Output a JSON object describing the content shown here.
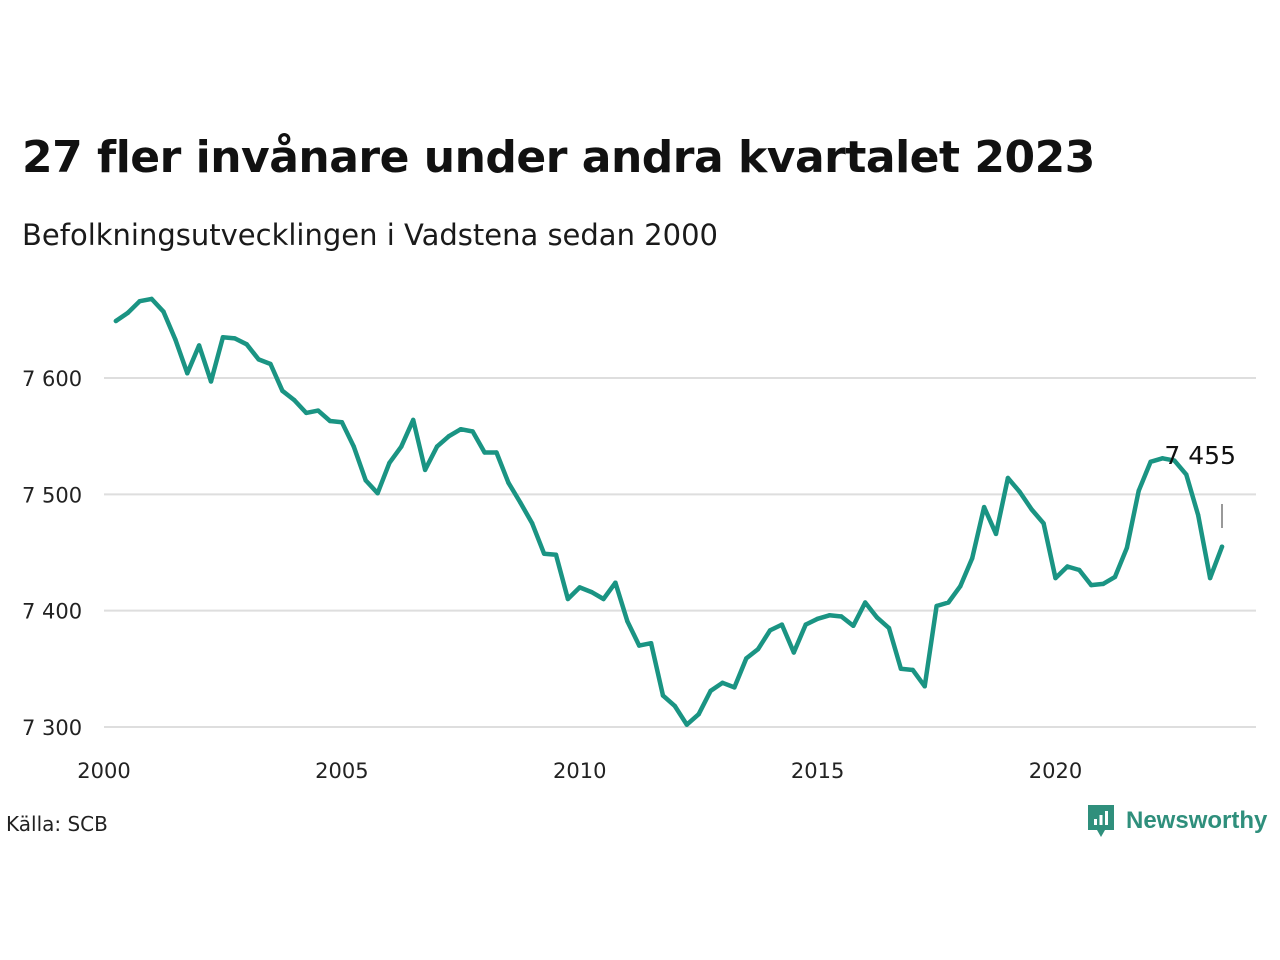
{
  "header": {
    "title": "27 fler invånare under andra kvartalet 2023",
    "subtitle": "Befolkningsutvecklingen i Vadstena sedan 2000"
  },
  "footer": {
    "source": "Källa: SCB",
    "brand": "Newsworthy"
  },
  "colors": {
    "line": "#1a9483",
    "grid": "#dedede",
    "brand": "#2f8f7c"
  },
  "chart_data": {
    "type": "line",
    "title": "27 fler invånare under andra kvartalet 2023",
    "subtitle": "Befolkningsutvecklingen i Vadstena sedan 2000",
    "xlim": [
      2000,
      2024.5
    ],
    "ylim": [
      7290,
      7690
    ],
    "x_ticks": [
      2000,
      2005,
      2010,
      2015,
      2020
    ],
    "x_tick_labels": [
      "2000",
      "2005",
      "2010",
      "2015",
      "2020"
    ],
    "y_ticks": [
      7300,
      7400,
      7500,
      7600
    ],
    "y_tick_labels": [
      "7 300",
      "7 400",
      "7 500",
      "7 600"
    ],
    "grid": "horizontal",
    "last_value_label": "7 455",
    "series": [
      {
        "values": [
          {
            "x": 2000.25,
            "y": 7649
          },
          {
            "x": 2000.5,
            "y": 7656
          },
          {
            "x": 2000.75,
            "y": 7666
          },
          {
            "x": 2001.0,
            "y": 7668
          },
          {
            "x": 2001.25,
            "y": 7657
          },
          {
            "x": 2001.5,
            "y": 7633
          },
          {
            "x": 2001.75,
            "y": 7604
          },
          {
            "x": 2002.0,
            "y": 7628
          },
          {
            "x": 2002.25,
            "y": 7597
          },
          {
            "x": 2002.5,
            "y": 7635
          },
          {
            "x": 2002.75,
            "y": 7634
          },
          {
            "x": 2003.0,
            "y": 7629
          },
          {
            "x": 2003.25,
            "y": 7616
          },
          {
            "x": 2003.5,
            "y": 7612
          },
          {
            "x": 2003.75,
            "y": 7589
          },
          {
            "x": 2004.0,
            "y": 7581
          },
          {
            "x": 2004.25,
            "y": 7570
          },
          {
            "x": 2004.5,
            "y": 7572
          },
          {
            "x": 2004.75,
            "y": 7563
          },
          {
            "x": 2005.0,
            "y": 7562
          },
          {
            "x": 2005.25,
            "y": 7541
          },
          {
            "x": 2005.5,
            "y": 7512
          },
          {
            "x": 2005.75,
            "y": 7501
          },
          {
            "x": 2006.0,
            "y": 7527
          },
          {
            "x": 2006.25,
            "y": 7541
          },
          {
            "x": 2006.5,
            "y": 7564
          },
          {
            "x": 2006.75,
            "y": 7521
          },
          {
            "x": 2007.0,
            "y": 7541
          },
          {
            "x": 2007.25,
            "y": 7550
          },
          {
            "x": 2007.5,
            "y": 7556
          },
          {
            "x": 2007.75,
            "y": 7554
          },
          {
            "x": 2008.0,
            "y": 7536
          },
          {
            "x": 2008.25,
            "y": 7536
          },
          {
            "x": 2008.5,
            "y": 7510
          },
          {
            "x": 2008.75,
            "y": 7493
          },
          {
            "x": 2009.0,
            "y": 7475
          },
          {
            "x": 2009.25,
            "y": 7449
          },
          {
            "x": 2009.5,
            "y": 7448
          },
          {
            "x": 2009.75,
            "y": 7410
          },
          {
            "x": 2010.0,
            "y": 7420
          },
          {
            "x": 2010.25,
            "y": 7416
          },
          {
            "x": 2010.5,
            "y": 7410
          },
          {
            "x": 2010.75,
            "y": 7424
          },
          {
            "x": 2011.0,
            "y": 7391
          },
          {
            "x": 2011.25,
            "y": 7370
          },
          {
            "x": 2011.5,
            "y": 7372
          },
          {
            "x": 2011.75,
            "y": 7327
          },
          {
            "x": 2012.0,
            "y": 7318
          },
          {
            "x": 2012.25,
            "y": 7302
          },
          {
            "x": 2012.5,
            "y": 7311
          },
          {
            "x": 2012.75,
            "y": 7331
          },
          {
            "x": 2013.0,
            "y": 7338
          },
          {
            "x": 2013.25,
            "y": 7334
          },
          {
            "x": 2013.5,
            "y": 7359
          },
          {
            "x": 2013.75,
            "y": 7367
          },
          {
            "x": 2014.0,
            "y": 7383
          },
          {
            "x": 2014.25,
            "y": 7388
          },
          {
            "x": 2014.5,
            "y": 7364
          },
          {
            "x": 2014.75,
            "y": 7388
          },
          {
            "x": 2015.0,
            "y": 7393
          },
          {
            "x": 2015.25,
            "y": 7396
          },
          {
            "x": 2015.5,
            "y": 7395
          },
          {
            "x": 2015.75,
            "y": 7387
          },
          {
            "x": 2016.0,
            "y": 7407
          },
          {
            "x": 2016.25,
            "y": 7394
          },
          {
            "x": 2016.5,
            "y": 7385
          },
          {
            "x": 2016.75,
            "y": 7350
          },
          {
            "x": 2017.0,
            "y": 7349
          },
          {
            "x": 2017.25,
            "y": 7335
          },
          {
            "x": 2017.5,
            "y": 7404
          },
          {
            "x": 2017.75,
            "y": 7407
          },
          {
            "x": 2018.0,
            "y": 7421
          },
          {
            "x": 2018.25,
            "y": 7445
          },
          {
            "x": 2018.5,
            "y": 7489
          },
          {
            "x": 2018.75,
            "y": 7466
          },
          {
            "x": 2019.0,
            "y": 7514
          },
          {
            "x": 2019.25,
            "y": 7502
          },
          {
            "x": 2019.5,
            "y": 7487
          },
          {
            "x": 2019.75,
            "y": 7475
          },
          {
            "x": 2020.0,
            "y": 7428
          },
          {
            "x": 2020.25,
            "y": 7438
          },
          {
            "x": 2020.5,
            "y": 7435
          },
          {
            "x": 2020.75,
            "y": 7422
          },
          {
            "x": 2021.0,
            "y": 7423
          },
          {
            "x": 2021.25,
            "y": 7429
          },
          {
            "x": 2021.5,
            "y": 7454
          },
          {
            "x": 2021.75,
            "y": 7503
          },
          {
            "x": 2022.0,
            "y": 7528
          },
          {
            "x": 2022.25,
            "y": 7531
          },
          {
            "x": 2022.5,
            "y": 7529
          },
          {
            "x": 2022.75,
            "y": 7517
          },
          {
            "x": 2023.0,
            "y": 7482
          },
          {
            "x": 2023.25,
            "y": 7428
          },
          {
            "x": 2023.5,
            "y": 7455
          }
        ]
      }
    ]
  }
}
